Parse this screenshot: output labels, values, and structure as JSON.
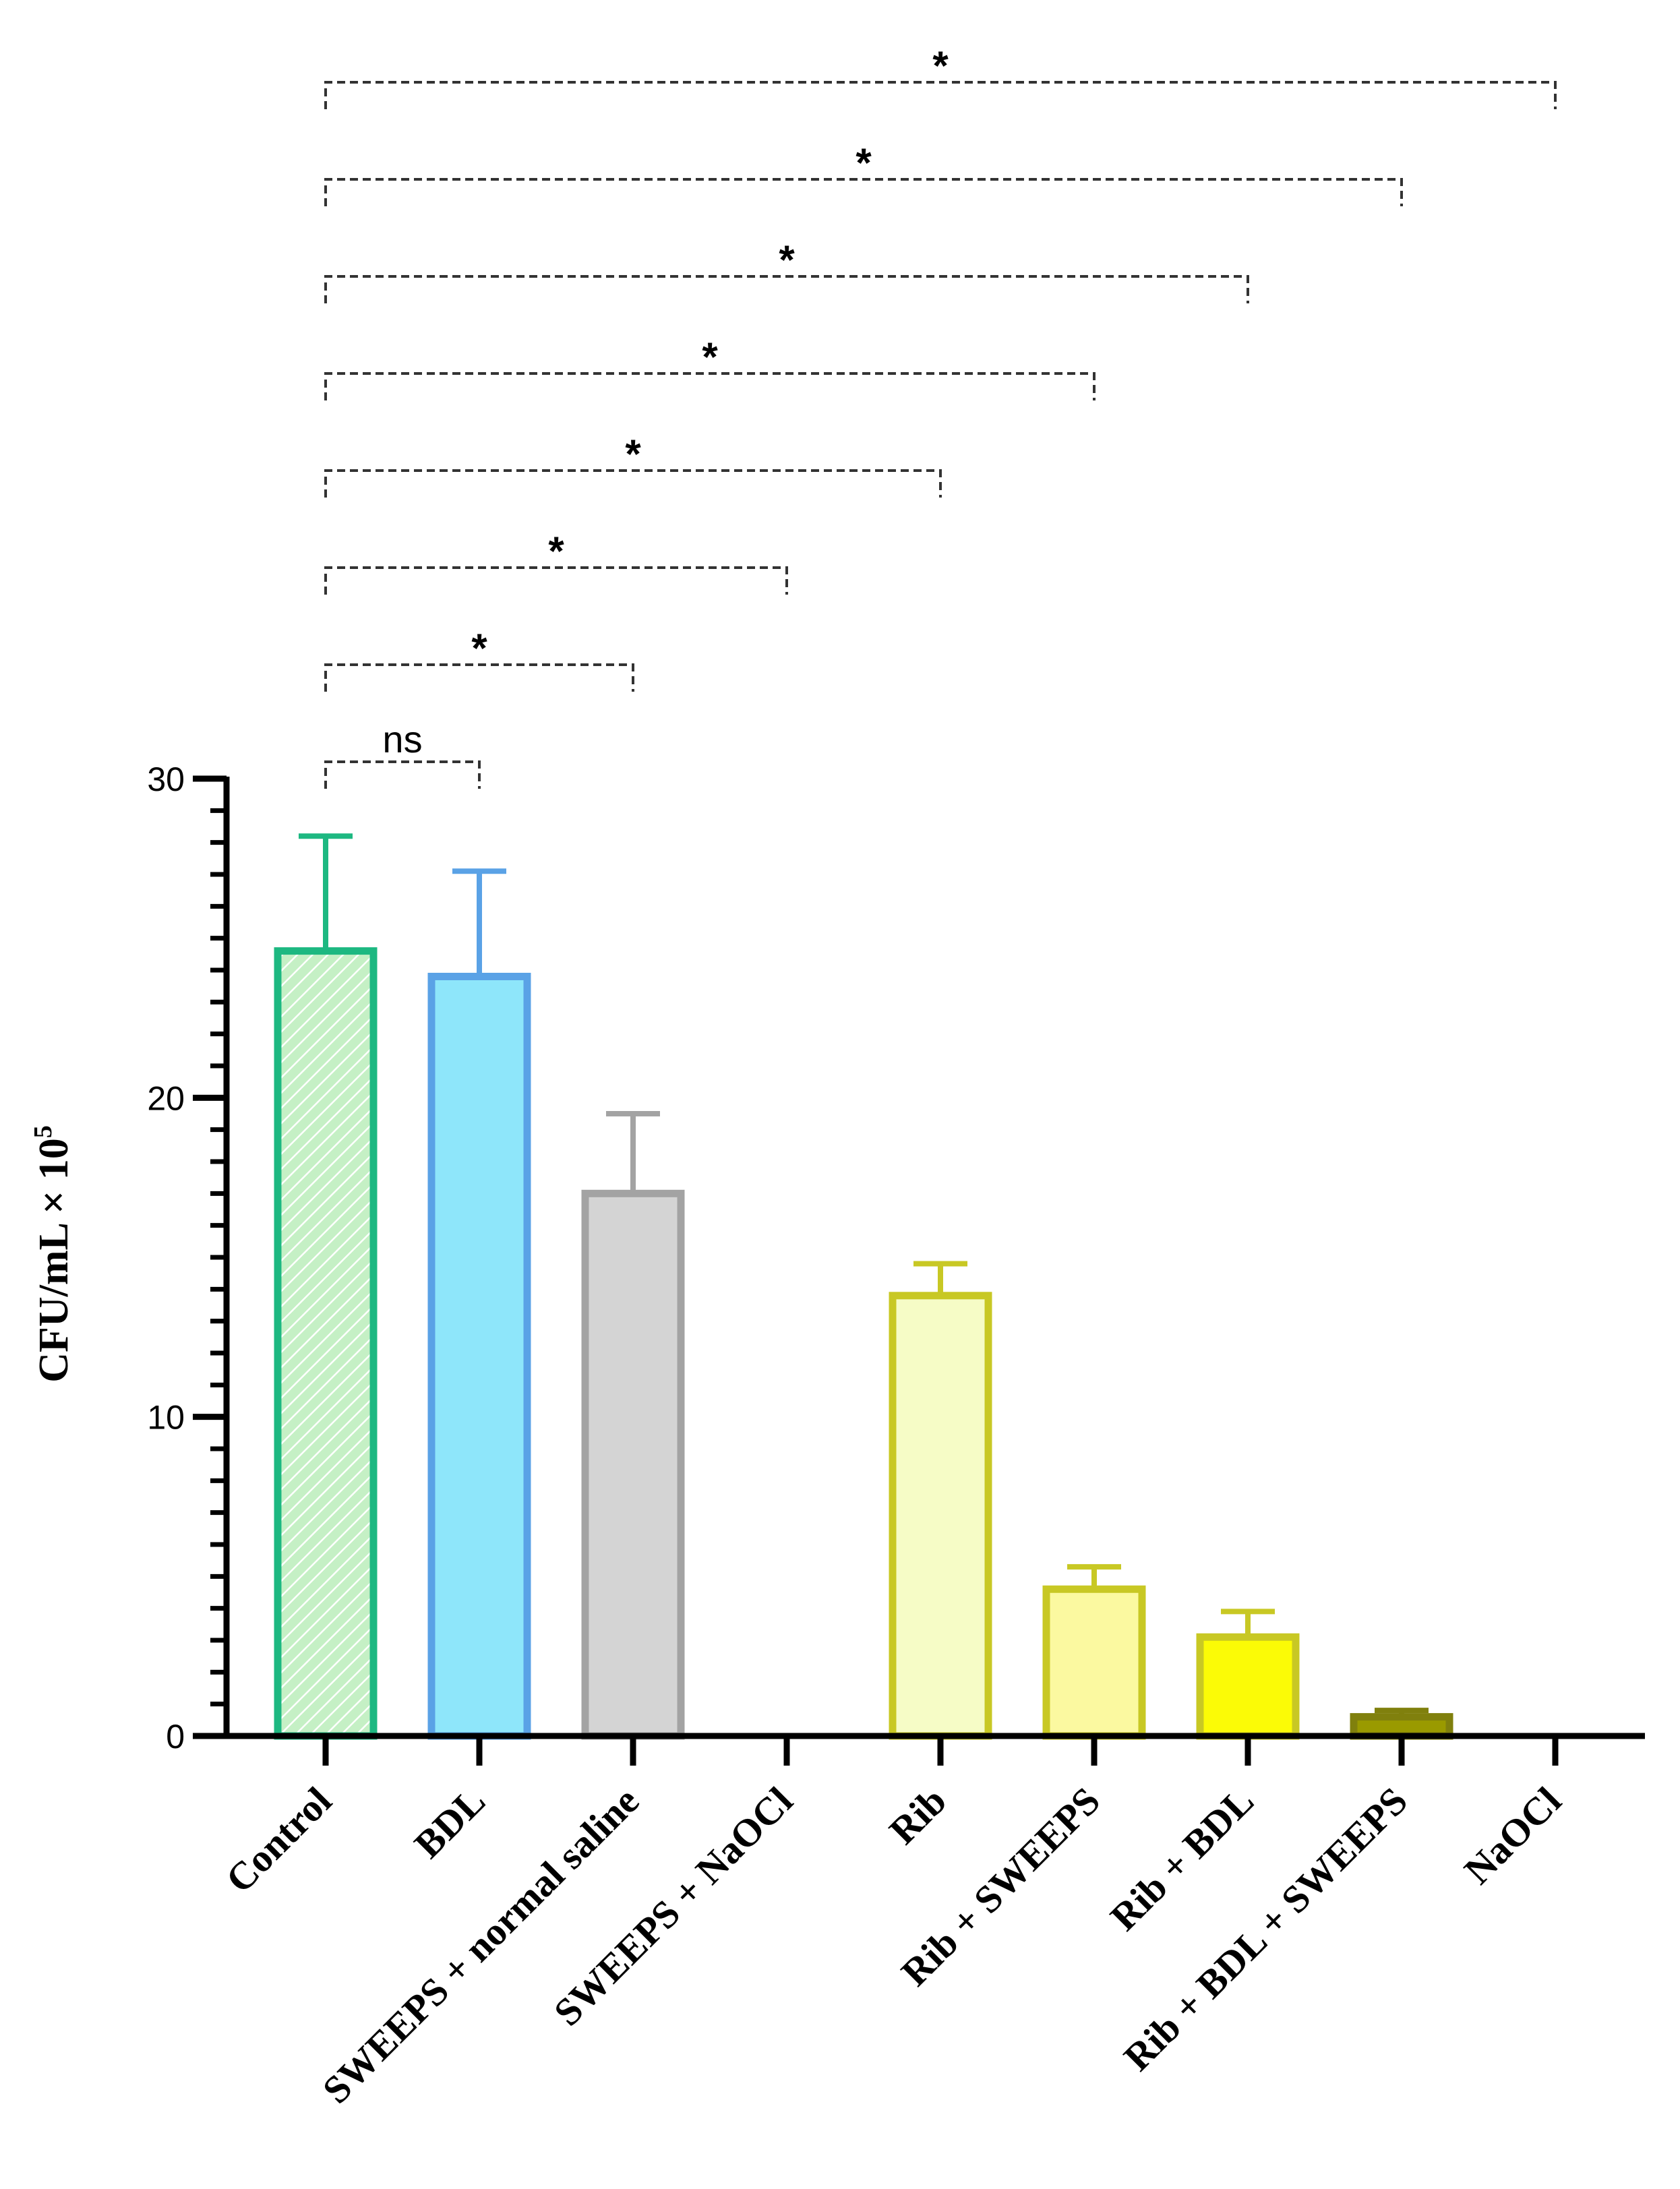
{
  "chart_data": {
    "type": "bar",
    "title": "",
    "xlabel": "",
    "ylabel": "CFU/mL × 10",
    "ylabel_superscript": "5",
    "ylim": [
      0,
      30
    ],
    "yticks": [
      "0",
      "10",
      "20",
      "30"
    ],
    "categories": [
      "Control",
      "BDL",
      "SWEEPS + normal saline",
      "SWEEPS + NaOCl",
      "Rib",
      "Rib + SWEEPS",
      "Rib + BDL",
      "Rib + BDL + SWEEPS",
      "NaOCl"
    ],
    "values": [
      24.6,
      23.8,
      17.0,
      0,
      13.8,
      4.6,
      3.1,
      0.6,
      0
    ],
    "errors": [
      3.6,
      3.3,
      2.5,
      0,
      1.0,
      0.7,
      0.8,
      0.2,
      0
    ],
    "fill_colors": [
      "#c5f0c5",
      "#8ee6fa",
      "#d4d4d4",
      "#ffffff",
      "#f6fcc6",
      "#fbf9a0",
      "#fbfb06",
      "#9a9a00",
      "#ffffff"
    ],
    "edge_colors": [
      "#1db881",
      "#5aa2e6",
      "#a3a3a3",
      "#ffffff",
      "#c8c824",
      "#c8c824",
      "#c8c824",
      "#80800d",
      "#ffffff"
    ],
    "hatched": [
      true,
      false,
      false,
      false,
      false,
      false,
      false,
      false,
      false
    ],
    "comparisons": [
      {
        "from": 0,
        "to": 1,
        "label": "ns"
      },
      {
        "from": 0,
        "to": 2,
        "label": "*"
      },
      {
        "from": 0,
        "to": 3,
        "label": "*"
      },
      {
        "from": 0,
        "to": 4,
        "label": "*"
      },
      {
        "from": 0,
        "to": 5,
        "label": "*"
      },
      {
        "from": 0,
        "to": 6,
        "label": "*"
      },
      {
        "from": 0,
        "to": 7,
        "label": "*"
      },
      {
        "from": 0,
        "to": 8,
        "label": "*"
      }
    ]
  }
}
